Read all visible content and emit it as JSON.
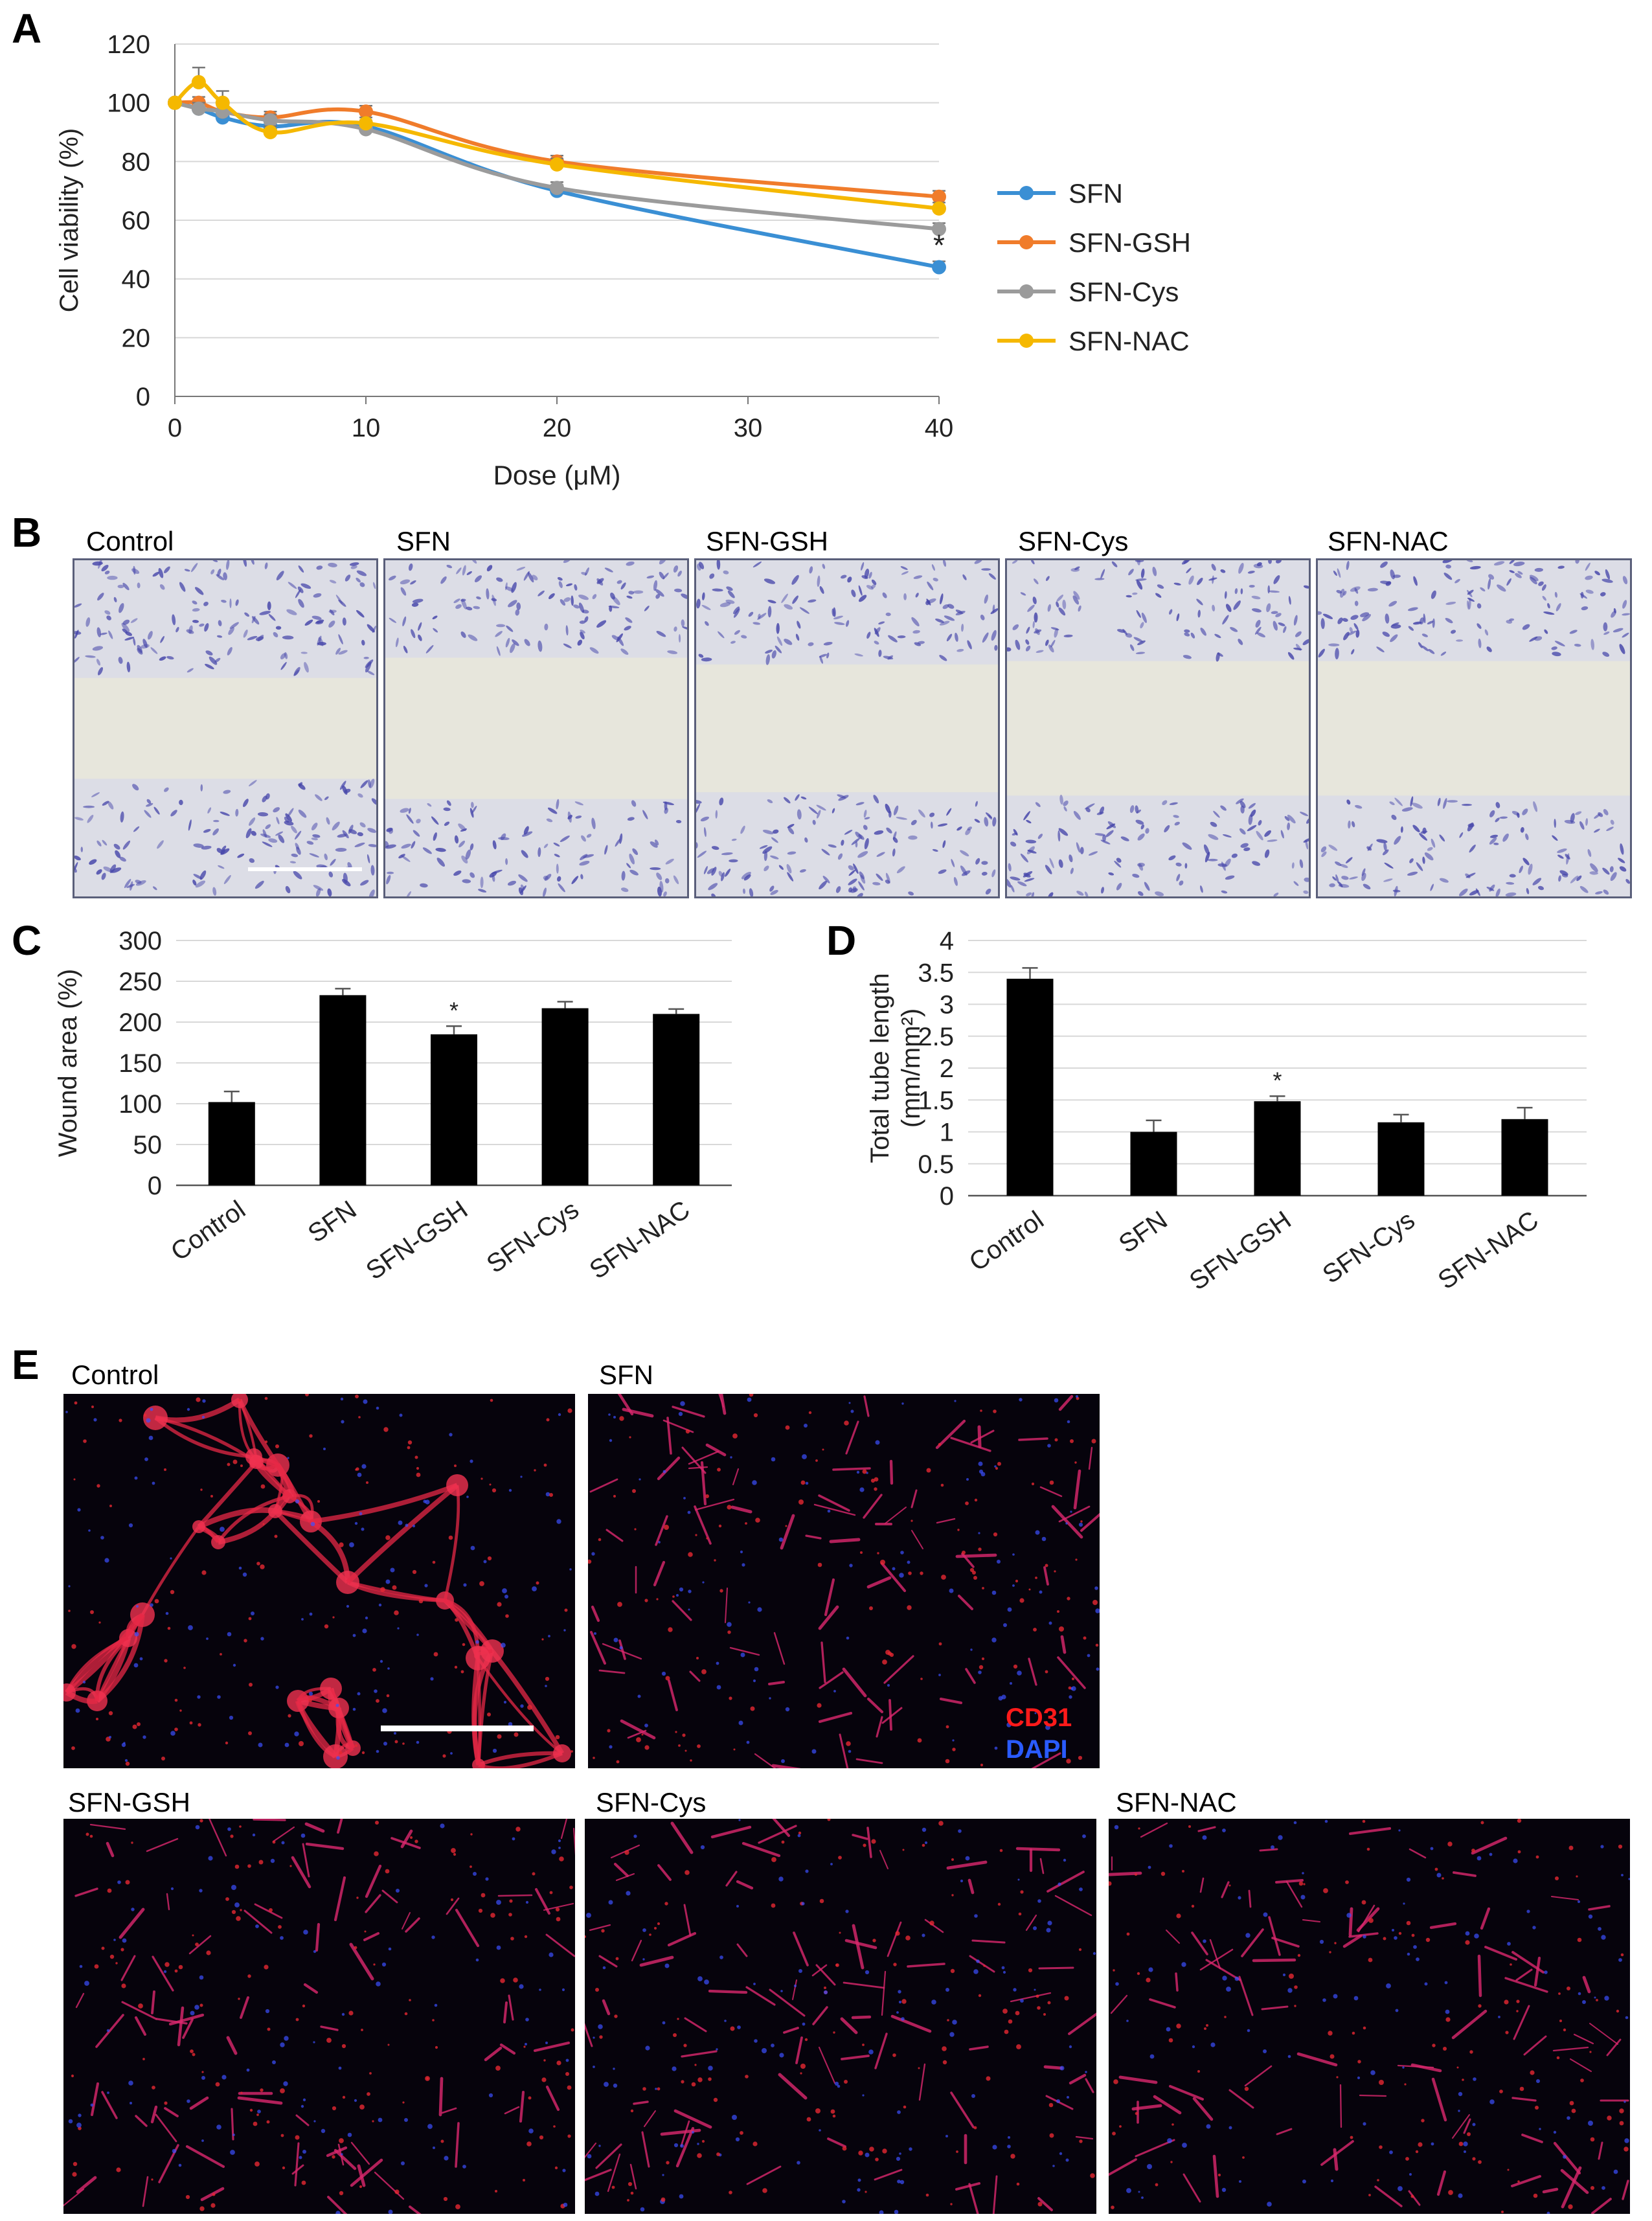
{
  "panels": {
    "A": "A",
    "B": "B",
    "C": "C",
    "D": "D",
    "E": "E"
  },
  "chart_data": [
    {
      "id": "A",
      "type": "line",
      "xlabel": "Dose (μM)",
      "ylabel": "Cell viability  (%)",
      "xlim": [
        0,
        40
      ],
      "ylim": [
        0,
        120
      ],
      "xticks": [
        "0",
        "10",
        "20",
        "30",
        "40"
      ],
      "yticks": [
        "0",
        "20",
        "40",
        "60",
        "80",
        "100",
        "120"
      ],
      "grid": true,
      "legend": "right",
      "series": [
        {
          "name": "SFN",
          "color": "#3a8fd4",
          "x": [
            0,
            1.25,
            2.5,
            5,
            10,
            20,
            40
          ],
          "y": [
            100,
            98,
            95,
            92,
            92,
            70,
            44
          ],
          "err": [
            1,
            2,
            2,
            2,
            2,
            2,
            2
          ]
        },
        {
          "name": "SFN-GSH",
          "color": "#f07c2b",
          "x": [
            0,
            1.25,
            2.5,
            5,
            10,
            20,
            40
          ],
          "y": [
            100,
            100,
            97,
            95,
            97,
            80,
            68
          ],
          "err": [
            1,
            2,
            2,
            2,
            2,
            2,
            2
          ]
        },
        {
          "name": "SFN-Cys",
          "color": "#9b9b9b",
          "x": [
            0,
            1.25,
            2.5,
            5,
            10,
            20,
            40
          ],
          "y": [
            100,
            98,
            97,
            94,
            91,
            71,
            57
          ],
          "err": [
            1,
            2,
            2,
            2,
            2,
            2,
            2
          ]
        },
        {
          "name": "SFN-NAC",
          "color": "#f5b800",
          "x": [
            0,
            1.25,
            2.5,
            5,
            10,
            20,
            40
          ],
          "y": [
            100,
            107,
            100,
            90,
            93,
            79,
            64
          ],
          "err": [
            1,
            5,
            4,
            2,
            2,
            2,
            2
          ]
        }
      ],
      "annotations": [
        {
          "text": "*",
          "x": 40
        }
      ]
    },
    {
      "id": "C",
      "type": "bar",
      "ylabel": "Wound area (%)",
      "categories": [
        "Control",
        "SFN",
        "SFN-GSH",
        "SFN-Cys",
        "SFN-NAC"
      ],
      "values": [
        102,
        233,
        185,
        217,
        210
      ],
      "err": [
        13,
        8,
        10,
        8,
        6
      ],
      "ylim": [
        0,
        300
      ],
      "yticks": [
        "0",
        "50",
        "100",
        "150",
        "200",
        "250",
        "300"
      ],
      "grid": true,
      "annotations": [
        {
          "text": "*",
          "category": "SFN-GSH"
        }
      ]
    },
    {
      "id": "D",
      "type": "bar",
      "ylabel": "Total tube length",
      "ylabel2": "(mm/mm²)",
      "categories": [
        "Control",
        "SFN",
        "SFN-GSH",
        "SFN-Cys",
        "SFN-NAC"
      ],
      "values": [
        3.4,
        1.0,
        1.48,
        1.15,
        1.2
      ],
      "err": [
        0.17,
        0.18,
        0.08,
        0.12,
        0.18
      ],
      "ylim": [
        0,
        4
      ],
      "yticks": [
        "0",
        "0.5",
        "1",
        "1.5",
        "2",
        "2.5",
        "3",
        "3.5",
        "4"
      ],
      "grid": true,
      "annotations": [
        {
          "text": "*",
          "category": "SFN-GSH"
        }
      ]
    }
  ],
  "panel_B": {
    "labels": [
      "Control",
      "SFN",
      "SFN-GSH",
      "SFN-Cys",
      "SFN-NAC"
    ]
  },
  "panel_E": {
    "labels": [
      "Control",
      "SFN",
      "SFN-GSH",
      "SFN-Cys",
      "SFN-NAC"
    ],
    "stain_label_1": "CD31",
    "stain_label_2": "DAPI",
    "stain_color_1": "#ff1a1a",
    "stain_color_2": "#2a5bff"
  }
}
